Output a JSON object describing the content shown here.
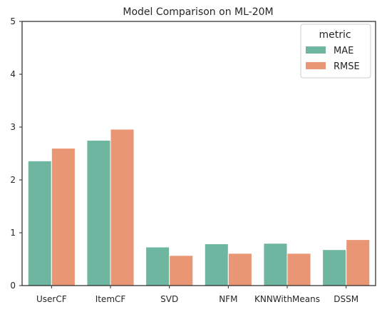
{
  "chart_data": {
    "type": "bar",
    "title": "Model Comparison on ML-20M",
    "xlabel": "",
    "ylabel": "",
    "ylim": [
      0,
      5
    ],
    "yticks": [
      "0",
      "1",
      "2",
      "3",
      "4",
      "5"
    ],
    "categories": [
      "UserCF",
      "ItemCF",
      "SVD",
      "NFM",
      "KNNWithMeans",
      "DSSM"
    ],
    "series": [
      {
        "name": "MAE",
        "color": "#6fb6a0",
        "values": [
          2.36,
          2.75,
          0.73,
          0.79,
          0.8,
          0.68
        ]
      },
      {
        "name": "RMSE",
        "color": "#e99675",
        "values": [
          2.6,
          2.96,
          0.57,
          0.61,
          0.61,
          0.87
        ]
      }
    ],
    "legend": {
      "title": "metric",
      "position": "top-right"
    },
    "grid": false
  }
}
